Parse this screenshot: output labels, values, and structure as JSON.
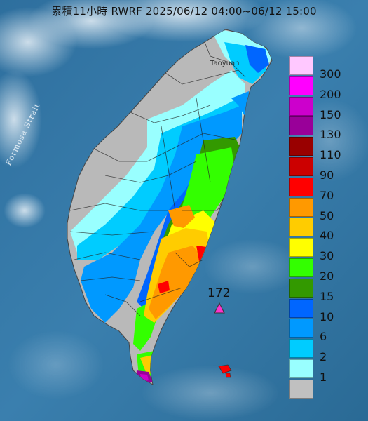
{
  "title": "累積11小時 RWRF 2025/06/12 04:00~06/12 15:00",
  "labels": {
    "strait": "Formosa Strait",
    "city": "Taoyuan",
    "max_value": "172"
  },
  "legend": [
    {
      "label": "300",
      "color": "#ffc8ff"
    },
    {
      "label": "200",
      "color": "#ff00ff"
    },
    {
      "label": "150",
      "color": "#cc00cc"
    },
    {
      "label": "130",
      "color": "#990099"
    },
    {
      "label": "110",
      "color": "#990000"
    },
    {
      "label": "90",
      "color": "#cc0000"
    },
    {
      "label": "70",
      "color": "#ff0000"
    },
    {
      "label": "50",
      "color": "#ff9900"
    },
    {
      "label": "40",
      "color": "#ffcc00"
    },
    {
      "label": "30",
      "color": "#ffff00"
    },
    {
      "label": "20",
      "color": "#33ff00"
    },
    {
      "label": "15",
      "color": "#339900"
    },
    {
      "label": "10",
      "color": "#0066ff"
    },
    {
      "label": "6",
      "color": "#0099ff"
    },
    {
      "label": "2",
      "color": "#00ccff"
    },
    {
      "label": "1",
      "color": "#99ffff"
    },
    {
      "label": "",
      "color": "#c0c0c0"
    }
  ]
}
